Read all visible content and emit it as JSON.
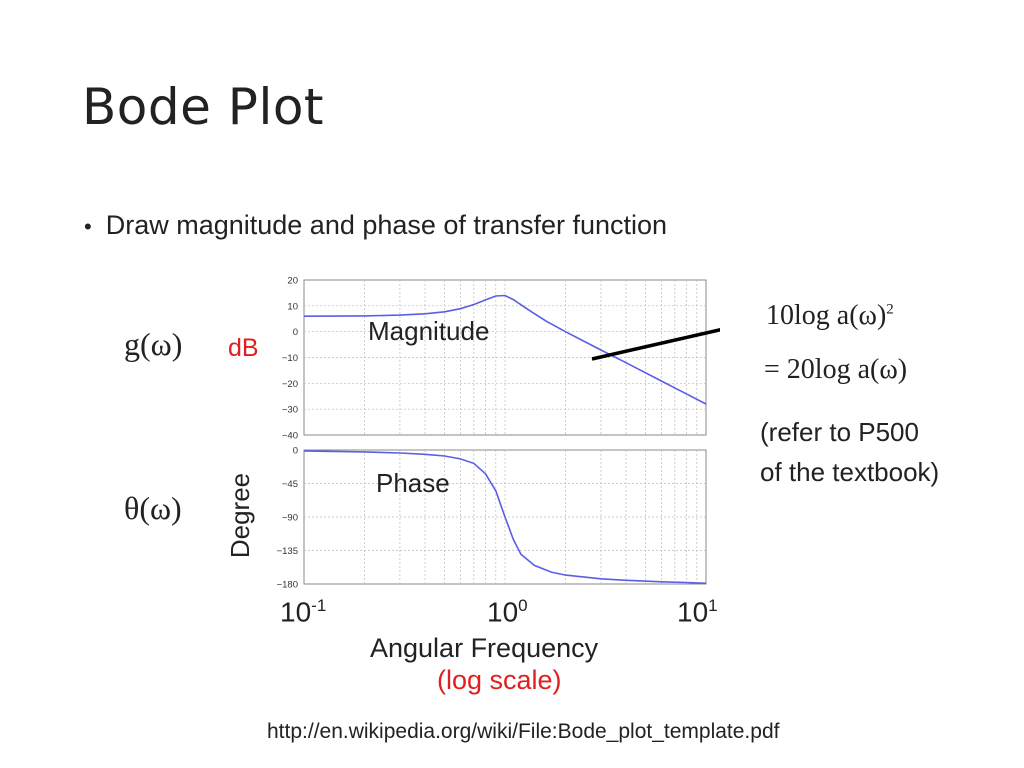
{
  "slide": {
    "title": "Bode Plot",
    "bullet": "Draw magnitude and phase of transfer function",
    "g_label": "g(ω)",
    "theta_label": "θ(ω)",
    "db_label": "dB",
    "degree_label": "Degree",
    "axis_title": "Angular Frequency",
    "axis_subtitle": "(log scale)",
    "formula_line1": "10log a(ω)",
    "formula_line1_sup": "2",
    "formula_line2": "= 20log a(ω)",
    "refer_line1": "(refer to P500",
    "refer_line2": "of the textbook)",
    "source": "http://en.wikipedia.org/wiki/File:Bode_plot_template.pdf",
    "freq_ticks": [
      {
        "base": "10",
        "exp": "-1"
      },
      {
        "base": "10",
        "exp": "0"
      },
      {
        "base": "10",
        "exp": "1"
      }
    ],
    "colors": {
      "accent_red": "#e02020",
      "curve": "#5a5ee6",
      "arrow": "#000000"
    }
  },
  "chart_data": [
    {
      "type": "line",
      "title": "Magnitude",
      "xscale": "log",
      "xlim": [
        0.1,
        10
      ],
      "ylim": [
        -40,
        20
      ],
      "yticks": [
        20,
        10,
        0,
        -10,
        -20,
        -30,
        -40
      ],
      "ytick_labels": [
        "20",
        "10",
        "0",
        "−10",
        "−20",
        "−30",
        "−40"
      ],
      "grid": true,
      "series": [
        {
          "x": [
            0.1,
            0.2,
            0.3,
            0.4,
            0.5,
            0.6,
            0.7,
            0.8,
            0.9,
            1.0,
            1.1,
            1.3,
            1.6,
            2.0,
            3.0,
            4.0,
            6.0,
            8.0,
            10.0
          ],
          "y": [
            6,
            6.1,
            6.4,
            6.9,
            7.7,
            8.9,
            10.5,
            12.3,
            13.8,
            14,
            12.4,
            8.6,
            4.1,
            0,
            -7.1,
            -12,
            -19.1,
            -24.1,
            -28
          ]
        }
      ]
    },
    {
      "type": "line",
      "title": "Phase",
      "xscale": "log",
      "xlim": [
        0.1,
        10
      ],
      "ylim": [
        -180,
        0
      ],
      "yticks": [
        0,
        -45,
        -90,
        -135,
        -180
      ],
      "ytick_labels": [
        "0",
        "−45",
        "−90",
        "−135",
        "−180"
      ],
      "grid": true,
      "series": [
        {
          "x": [
            0.1,
            0.2,
            0.3,
            0.4,
            0.5,
            0.6,
            0.7,
            0.8,
            0.9,
            1.0,
            1.1,
            1.2,
            1.4,
            1.7,
            2.0,
            3.0,
            4.0,
            6.0,
            8.0,
            10.0
          ],
          "y": [
            -1.2,
            -2.5,
            -4,
            -5.8,
            -8,
            -12,
            -18,
            -32,
            -55,
            -90,
            -120,
            -140,
            -155,
            -164,
            -168,
            -173,
            -175,
            -177,
            -178,
            -179
          ]
        }
      ]
    }
  ]
}
